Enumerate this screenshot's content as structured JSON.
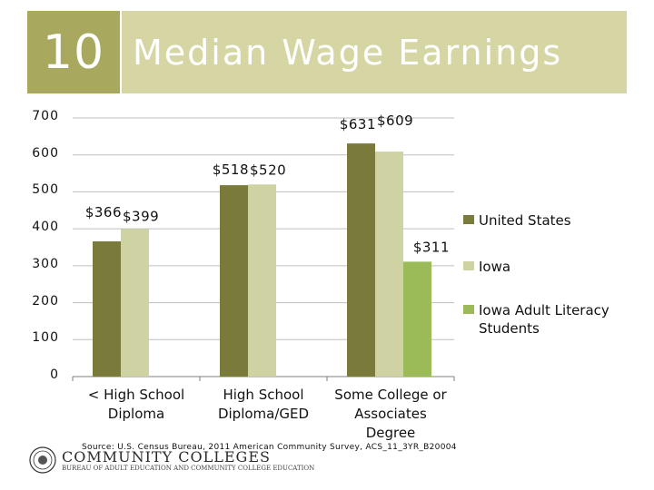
{
  "header": {
    "number": "10",
    "title": "Median Wage Earnings"
  },
  "chart_data": {
    "type": "bar",
    "categories": [
      "< High School Diploma",
      "High School Diploma/GED",
      "Some College or Associates Degree"
    ],
    "category_lines": [
      [
        "< High School",
        "Diploma"
      ],
      [
        "High School",
        "Diploma/GED"
      ],
      [
        "Some College or",
        "Associates",
        "Degree"
      ]
    ],
    "series": [
      {
        "name": "United States",
        "color": "#7a7a3a",
        "values": [
          366,
          518,
          631
        ],
        "labels": [
          "$366",
          "$518",
          "$631"
        ]
      },
      {
        "name": "Iowa",
        "color": "#cfd2a2",
        "values": [
          399,
          520,
          609
        ],
        "labels": [
          "$399",
          "$520",
          "$609"
        ]
      },
      {
        "name": "Iowa Adult Literacy Students",
        "color": "#9bbb59",
        "values": [
          null,
          null,
          311
        ],
        "labels": [
          "",
          "",
          "$311"
        ]
      }
    ],
    "legend_lines": [
      [
        "United States"
      ],
      [
        "Iowa"
      ],
      [
        "Iowa Adult Literacy",
        "Students"
      ]
    ],
    "yticks": [
      0,
      100,
      200,
      300,
      400,
      500,
      600,
      700
    ],
    "ylim": [
      0,
      700
    ],
    "grid": true,
    "legend_position": "right",
    "title": "Median Wage Earnings",
    "xlabel": "",
    "ylabel": ""
  },
  "source": "Source: U.S. Census Bureau, 2011 American Community Survey, ACS_11_3YR_B20004",
  "logo": {
    "name": "COMMUNITY COLLEGES",
    "subtitle": "BUREAU OF ADULT EDUCATION AND COMMUNITY COLLEGE EDUCATION"
  },
  "colors": {
    "header_dark": "#a9a85f",
    "header_light": "#d5d6a4",
    "gridline": "#bfbfbf"
  }
}
